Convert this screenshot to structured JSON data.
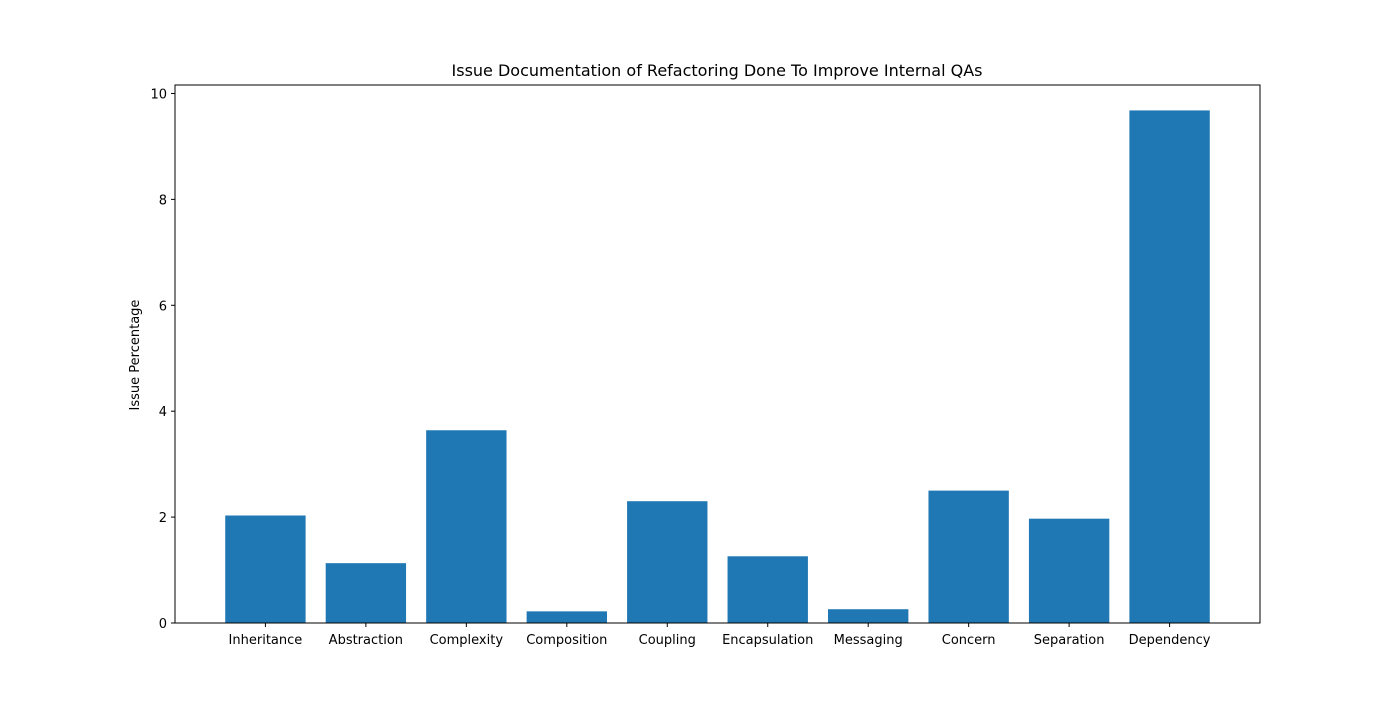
{
  "colors": {
    "bar": "#1f77b4",
    "axis": "#000000",
    "background": "#ffffff"
  },
  "chart_data": {
    "type": "bar",
    "title": "Issue Documentation of Refactoring Done To Improve Internal QAs",
    "xlabel": "",
    "ylabel": "Issue Percentage",
    "categories": [
      "Inheritance",
      "Abstraction",
      "Complexity",
      "Composition",
      "Coupling",
      "Encapsulation",
      "Messaging",
      "Concern",
      "Separation",
      "Dependency"
    ],
    "values": [
      2.03,
      1.13,
      3.64,
      0.22,
      2.3,
      1.26,
      0.26,
      2.5,
      1.97,
      9.68
    ],
    "ylim": [
      0,
      10.16
    ],
    "yticks": [
      0,
      2,
      4,
      6,
      8,
      10
    ],
    "grid": false,
    "legend": "none"
  }
}
